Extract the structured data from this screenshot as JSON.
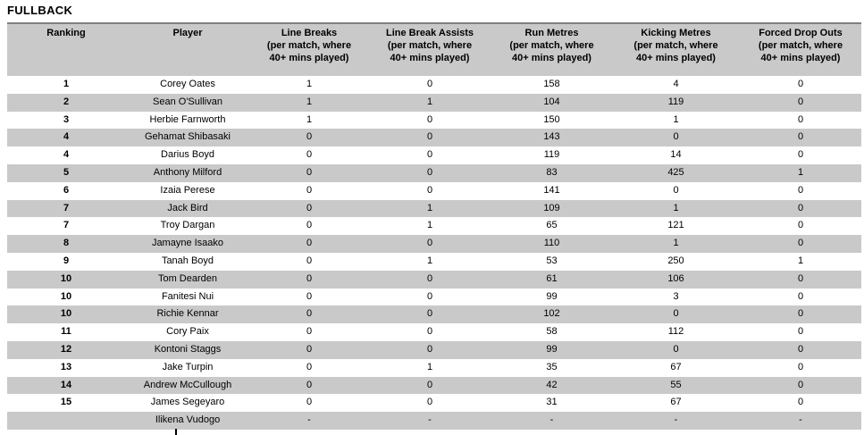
{
  "title": "FULLBACK",
  "colors": {
    "header_bg": "#c9c9c9",
    "stripe_bg": "#c9c9c9",
    "top_border": "#7f7f7f"
  },
  "table": {
    "columns": [
      {
        "key": "ranking",
        "label": "Ranking",
        "sub": ""
      },
      {
        "key": "player",
        "label": "Player",
        "sub": ""
      },
      {
        "key": "line-breaks",
        "label": "Line Breaks",
        "sub": "(per match, where\n40+ mins played)"
      },
      {
        "key": "line-break-assists",
        "label": "Line Break Assists",
        "sub": "(per match, where\n40+ mins played)"
      },
      {
        "key": "run-metres",
        "label": "Run Metres",
        "sub": "(per match, where\n40+ mins played)"
      },
      {
        "key": "kicking-metres",
        "label": "Kicking Metres",
        "sub": "(per match, where\n40+ mins played)"
      },
      {
        "key": "forced-drop-outs",
        "label": "Forced Drop Outs",
        "sub": "(per match, where\n40+ mins played)"
      }
    ],
    "rows": [
      [
        "1",
        "Corey Oates",
        "1",
        "0",
        "158",
        "4",
        "0"
      ],
      [
        "2",
        "Sean O'Sullivan",
        "1",
        "1",
        "104",
        "119",
        "0"
      ],
      [
        "3",
        "Herbie Farnworth",
        "1",
        "0",
        "150",
        "1",
        "0"
      ],
      [
        "4",
        "Gehamat Shibasaki",
        "0",
        "0",
        "143",
        "0",
        "0"
      ],
      [
        "4",
        "Darius Boyd",
        "0",
        "0",
        "119",
        "14",
        "0"
      ],
      [
        "5",
        "Anthony Milford",
        "0",
        "0",
        "83",
        "425",
        "1"
      ],
      [
        "6",
        "Izaia Perese",
        "0",
        "0",
        "141",
        "0",
        "0"
      ],
      [
        "7",
        "Jack Bird",
        "0",
        "1",
        "109",
        "1",
        "0"
      ],
      [
        "7",
        "Troy Dargan",
        "0",
        "1",
        "65",
        "121",
        "0"
      ],
      [
        "8",
        "Jamayne Isaako",
        "0",
        "0",
        "110",
        "1",
        "0"
      ],
      [
        "9",
        "Tanah Boyd",
        "0",
        "1",
        "53",
        "250",
        "1"
      ],
      [
        "10",
        "Tom Dearden",
        "0",
        "0",
        "61",
        "106",
        "0"
      ],
      [
        "10",
        "Fanitesi Nui",
        "0",
        "0",
        "99",
        "3",
        "0"
      ],
      [
        "10",
        "Richie Kennar",
        "0",
        "0",
        "102",
        "0",
        "0"
      ],
      [
        "11",
        "Cory Paix",
        "0",
        "0",
        "58",
        "112",
        "0"
      ],
      [
        "12",
        "Kontoni Staggs",
        "0",
        "0",
        "99",
        "0",
        "0"
      ],
      [
        "13",
        "Jake Turpin",
        "0",
        "1",
        "35",
        "67",
        "0"
      ],
      [
        "14",
        "Andrew McCullough",
        "0",
        "0",
        "42",
        "55",
        "0"
      ],
      [
        "15",
        "James Segeyaro",
        "0",
        "0",
        "31",
        "67",
        "0"
      ],
      [
        "",
        "Ilikena Vudogo",
        "-",
        "-",
        "-",
        "-",
        "-"
      ]
    ]
  }
}
